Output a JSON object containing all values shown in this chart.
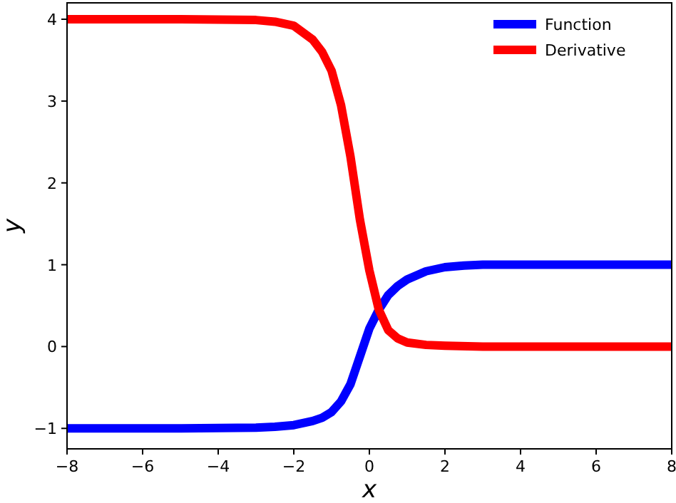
{
  "chart_data": {
    "type": "line",
    "xlabel": "x",
    "ylabel": "y",
    "xlim": [
      -8,
      8
    ],
    "ylim": [
      -1.25,
      4.2
    ],
    "xticks": [
      -8,
      -6,
      -4,
      -2,
      0,
      2,
      4,
      6,
      8
    ],
    "yticks": [
      -1,
      0,
      1,
      2,
      3,
      4
    ],
    "legend": "top right",
    "grid": false,
    "marker": "none",
    "line_style": "solid",
    "series": [
      {
        "name": "Function",
        "color": "#0000ff",
        "x": [
          -8,
          -5,
          -3,
          -2.5,
          -2,
          -1.5,
          -1.25,
          -1,
          -0.75,
          -0.5,
          -0.25,
          0,
          0.25,
          0.5,
          0.75,
          1,
          1.5,
          2,
          2.5,
          3,
          5,
          8
        ],
        "values": [
          -1,
          -1,
          -0.99,
          -0.98,
          -0.96,
          -0.91,
          -0.87,
          -0.8,
          -0.67,
          -0.46,
          -0.12,
          0.22,
          0.45,
          0.63,
          0.74,
          0.82,
          0.92,
          0.97,
          0.99,
          1,
          1,
          1
        ]
      },
      {
        "name": "Derivative",
        "color": "#ff0000",
        "x": [
          -8,
          -5,
          -3,
          -2.5,
          -2,
          -1.5,
          -1.25,
          -1,
          -0.75,
          -0.5,
          -0.25,
          0,
          0.25,
          0.5,
          0.75,
          1,
          1.5,
          2,
          3,
          5,
          8
        ],
        "values": [
          4,
          4,
          3.99,
          3.97,
          3.92,
          3.75,
          3.6,
          3.37,
          2.95,
          2.32,
          1.55,
          0.93,
          0.45,
          0.2,
          0.1,
          0.05,
          0.02,
          0.01,
          0,
          0,
          0
        ]
      }
    ]
  }
}
